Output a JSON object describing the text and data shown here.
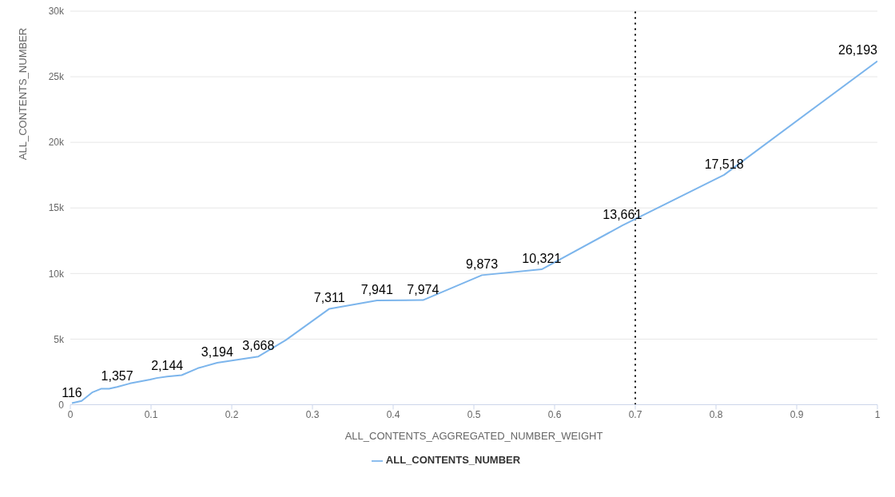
{
  "chart_data": {
    "type": "line",
    "xlabel": "ALL_CONTENTS_AGGREGATED_NUMBER_WEIGHT",
    "ylabel": "ALL_CONTENTS_NUMBER",
    "x": [
      0.002,
      0.014,
      0.027,
      0.038,
      0.048,
      0.058,
      0.074,
      0.099,
      0.107,
      0.12,
      0.138,
      0.158,
      0.182,
      0.233,
      0.267,
      0.321,
      0.38,
      0.437,
      0.51,
      0.584,
      0.684,
      0.81,
      1.0
    ],
    "series": [
      {
        "name": "ALL_CONTENTS_NUMBER",
        "color": "#7cb5ec",
        "values": [
          116,
          290,
          930,
          1210,
          1210,
          1357,
          1620,
          1910,
          2030,
          2144,
          2250,
          2780,
          3194,
          3668,
          4920,
          7311,
          7941,
          7974,
          9873,
          10321,
          13661,
          17518,
          26193
        ],
        "value_labels": [
          "116",
          null,
          null,
          null,
          null,
          "1,357",
          null,
          null,
          null,
          "2,144",
          null,
          null,
          "3,194",
          "3,668",
          null,
          "7,311",
          "7,941",
          "7,974",
          "9,873",
          "10,321",
          "13,661",
          "17,518",
          "26,193"
        ]
      }
    ],
    "xlim": [
      0,
      1
    ],
    "xticks": [
      0,
      0.1,
      0.2,
      0.3,
      0.4,
      0.5,
      0.6,
      0.7,
      0.8,
      0.9,
      1
    ],
    "ylim": [
      0,
      30000
    ],
    "yticks": [
      0,
      {
        "value": 5000,
        "label": "5k"
      },
      {
        "value": 10000,
        "label": "10k"
      },
      {
        "value": 15000,
        "label": "15k"
      },
      {
        "value": 20000,
        "label": "20k"
      },
      {
        "value": 25000,
        "label": "25k"
      },
      {
        "value": 30000,
        "label": "30k"
      }
    ],
    "ref_lines": [
      {
        "axis": "x",
        "value": 0.7,
        "color": "#000000",
        "line_style": "dotted"
      }
    ],
    "grid": "y",
    "legend": "bottom",
    "marker": "none",
    "line_style": "solid"
  }
}
